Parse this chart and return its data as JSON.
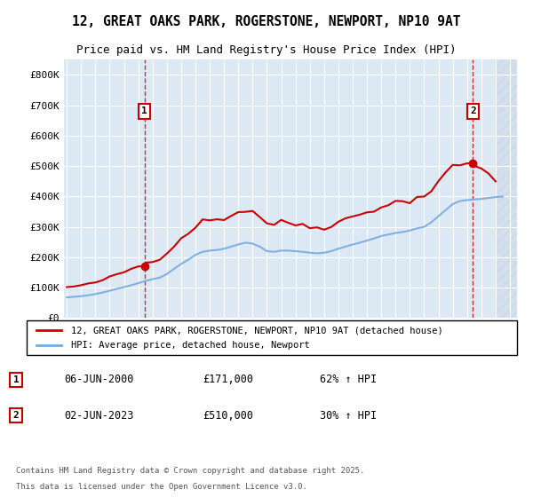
{
  "title1": "12, GREAT OAKS PARK, ROGERSTONE, NEWPORT, NP10 9AT",
  "title2": "Price paid vs. HM Land Registry's House Price Index (HPI)",
  "bg_color": "#dce9f5",
  "plot_bg": "#dce9f5",
  "hatch_color": "#c0d0e8",
  "red_color": "#cc0000",
  "blue_color": "#77aadd",
  "dashed_color": "#cc0000",
  "sale1_year": 2000.44,
  "sale2_year": 2023.42,
  "sale1_price": 171000,
  "sale2_price": 510000,
  "ylim_max": 850000,
  "legend_line1": "12, GREAT OAKS PARK, ROGERSTONE, NEWPORT, NP10 9AT (detached house)",
  "legend_line2": "HPI: Average price, detached house, Newport",
  "footnote1": "Contains HM Land Registry data © Crown copyright and database right 2025.",
  "footnote2": "This data is licensed under the Open Government Licence v3.0.",
  "label1_date": "06-JUN-2000",
  "label1_price": "£171,000",
  "label1_hpi": "62% ↑ HPI",
  "label2_date": "02-JUN-2023",
  "label2_price": "£510,000",
  "label2_hpi": "30% ↑ HPI"
}
